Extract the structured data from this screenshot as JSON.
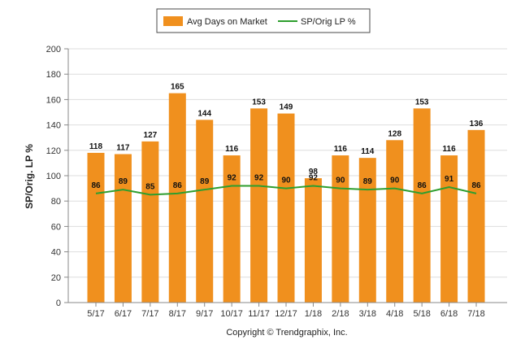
{
  "legend": {
    "series_a": "Avg Days on Market",
    "series_b": "SP/Orig LP %"
  },
  "footer": {
    "copyright": "Copyright © Trendgraphix, Inc."
  },
  "colors": {
    "bar": "#F0901E",
    "line": "#2E9E2E",
    "grid": "#dddddd"
  },
  "chart_data": {
    "type": "bar",
    "title": "",
    "xlabel": "",
    "ylabel": "SP/Orig. LP %",
    "ylim": [
      0,
      200
    ],
    "yticks": [
      0,
      20,
      40,
      60,
      80,
      100,
      120,
      140,
      160,
      180,
      200
    ],
    "grid": true,
    "legend_position": "top-center",
    "categories": [
      "5/17",
      "6/17",
      "7/17",
      "8/17",
      "9/17",
      "10/17",
      "11/17",
      "12/17",
      "1/18",
      "2/18",
      "3/18",
      "4/18",
      "5/18",
      "6/18",
      "7/18"
    ],
    "series": [
      {
        "name": "Avg Days on Market",
        "type": "bar",
        "values": [
          118,
          117,
          127,
          165,
          144,
          116,
          153,
          149,
          98,
          116,
          114,
          128,
          153,
          116,
          136
        ]
      },
      {
        "name": "SP/Orig LP %",
        "type": "line",
        "values": [
          86,
          89,
          85,
          86,
          89,
          92,
          92,
          90,
          92,
          90,
          89,
          90,
          86,
          91,
          86
        ]
      }
    ]
  }
}
